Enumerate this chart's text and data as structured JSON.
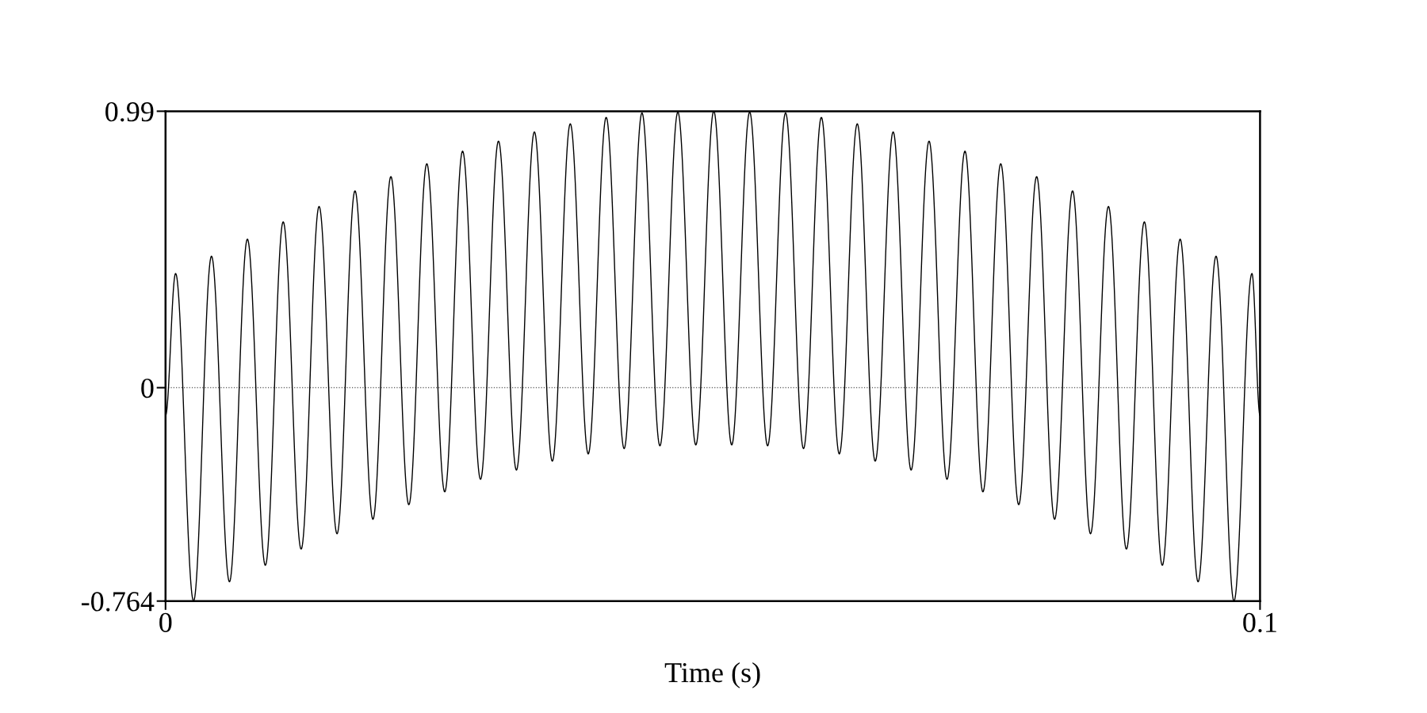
{
  "chart_data": {
    "type": "line",
    "xlabel": "Time (s)",
    "x": [
      0,
      0.00092,
      0.00256,
      0.0042,
      0.00584,
      0.00748,
      0.00912,
      0.01075,
      0.01239,
      0.01403,
      0.01567,
      0.01731,
      0.01895,
      0.02059,
      0.02223,
      0.02387,
      0.02551,
      0.02714,
      0.02878,
      0.03042,
      0.03206,
      0.0337,
      0.03534,
      0.03698,
      0.03862,
      0.04026,
      0.0419,
      0.04353,
      0.04517,
      0.04681,
      0.04845,
      0.05009,
      0.05173,
      0.05337,
      0.05501,
      0.05665,
      0.05829,
      0.05992,
      0.06156,
      0.0632,
      0.06484,
      0.06648,
      0.06812,
      0.06976,
      0.0714,
      0.07304,
      0.07468,
      0.07631,
      0.07795,
      0.07959,
      0.08123,
      0.08287,
      0.08451,
      0.08615,
      0.08779,
      0.08943,
      0.09107,
      0.0927,
      0.09434,
      0.09598,
      0.09762,
      0.09926,
      0.1
    ],
    "series": [
      {
        "color": "#000000",
        "values": [
          -0.1,
          0.409,
          -0.764,
          0.471,
          -0.695,
          0.532,
          -0.636,
          0.594,
          -0.578,
          0.649,
          -0.523,
          0.705,
          -0.471,
          0.756,
          -0.419,
          0.802,
          -0.373,
          0.847,
          -0.328,
          0.883,
          -0.295,
          0.916,
          -0.263,
          0.945,
          -0.237,
          0.968,
          -0.218,
          0.984,
          -0.208,
          0.987,
          -0.205,
          0.99,
          -0.205,
          0.987,
          -0.208,
          0.984,
          -0.218,
          0.968,
          -0.237,
          0.945,
          -0.263,
          0.916,
          -0.295,
          0.883,
          -0.328,
          0.847,
          -0.373,
          0.802,
          -0.419,
          0.756,
          -0.471,
          0.705,
          -0.523,
          0.649,
          -0.578,
          0.594,
          -0.636,
          0.532,
          -0.695,
          0.471,
          -0.764,
          0.409,
          -0.1
        ]
      }
    ],
    "xlim": [
      0,
      0.1
    ],
    "ylim": [
      -0.764,
      0.99
    ],
    "xticks": [
      0,
      0.1
    ],
    "yticks": [
      -0.764,
      0,
      0.99
    ],
    "ref_lines": [
      {
        "axis": "y",
        "value": 0,
        "line_style": "dotted",
        "color": "#555555"
      }
    ],
    "grid": false,
    "legend": false,
    "marker": "none",
    "line_style": "solid"
  }
}
